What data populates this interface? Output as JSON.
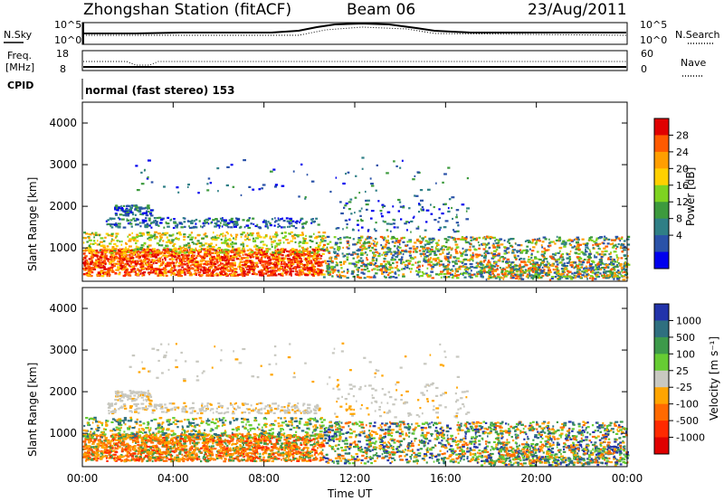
{
  "header": {
    "title": "Zhongshan Station (fitACF)",
    "beam": "Beam 06",
    "date": "23/Aug/2011"
  },
  "summary": {
    "nsky_label": "N.Sky",
    "nsky_ticks": [
      "10^5",
      "10^0"
    ],
    "nsearch_label": "N.Search",
    "nsearch_ticks": [
      "10^5",
      "10^0"
    ],
    "freq_label": "Freq.",
    "freq_unit": "[MHz]",
    "freq_ticks": [
      "18",
      "8"
    ],
    "nave_label": "Nave",
    "nave_ticks": [
      "60",
      "0"
    ],
    "cpid_label": "CPID",
    "cpid_text": "normal (fast stereo) 153"
  },
  "chart_data": [
    {
      "type": "heatmap",
      "name": "power",
      "ylabel": "Slant Range [km]",
      "xlabel": "Time UT",
      "yticks": [
        "4000",
        "3000",
        "2000",
        "1000"
      ],
      "xticks": [
        "00:00",
        "04:00",
        "08:00",
        "12:00",
        "16:00",
        "20:00",
        "00:00"
      ],
      "ylim": [
        200,
        4500
      ],
      "xlim_hours": [
        0,
        24
      ],
      "colorbar": {
        "label": "Power [dB]",
        "ticks": [
          "28",
          "24",
          "20",
          "16",
          "12",
          "8",
          "4"
        ],
        "colors": [
          "#e00000",
          "#ff5a00",
          "#ff9e00",
          "#ffd000",
          "#7ed321",
          "#3d9a3d",
          "#2f7f86",
          "#2a52a8",
          "#0000ee"
        ]
      }
    },
    {
      "type": "heatmap",
      "name": "velocity",
      "ylabel": "Slant Range [km]",
      "xlabel": "Time UT",
      "yticks": [
        "4000",
        "3000",
        "2000",
        "1000"
      ],
      "xticks": [
        "00:00",
        "04:00",
        "08:00",
        "12:00",
        "16:00",
        "20:00",
        "00:00"
      ],
      "ylim": [
        200,
        4500
      ],
      "xlim_hours": [
        0,
        24
      ],
      "colorbar": {
        "label": "Velocity [m s⁻¹]",
        "ticks": [
          "1000",
          "500",
          "100",
          "25",
          "-25",
          "-100",
          "-500",
          "-1000"
        ],
        "colors": [
          "#2233aa",
          "#2f6f7f",
          "#3d9a4a",
          "#66cc33",
          "#c8c8c0",
          "#ffa500",
          "#ff6a00",
          "#ff2a00",
          "#e00000"
        ]
      }
    }
  ]
}
